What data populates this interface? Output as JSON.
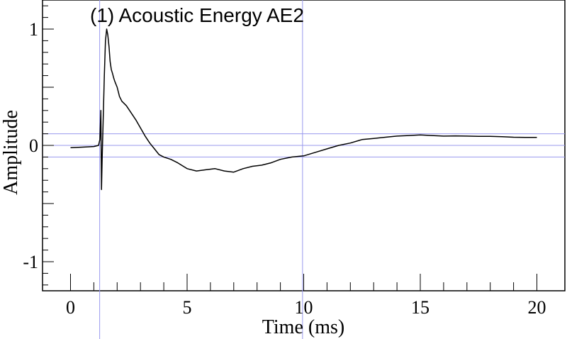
{
  "chart_data": {
    "type": "line",
    "title": "(1) Acoustic Energy AE2",
    "xlabel": "Time (ms)",
    "ylabel": "Amplitude",
    "xlim": [
      -1.2,
      21.2
    ],
    "ylim": [
      -1.25,
      1.25
    ],
    "x_ticks": [
      0,
      5,
      10,
      15,
      20
    ],
    "x_tick_labels": [
      "0",
      "5",
      "10",
      "15",
      "20"
    ],
    "y_ticks": [
      -1,
      0,
      1
    ],
    "y_tick_labels": [
      "-1",
      "0",
      "1"
    ],
    "reference_lines": {
      "horizontal": [
        0.1,
        0,
        -0.1
      ],
      "vertical": [
        1.25,
        9.95
      ]
    },
    "grid": false,
    "colors": {
      "signal": "#000000",
      "reference": "#9999ee",
      "axis": "#000000"
    },
    "series": [
      {
        "x": [
          0.0,
          0.5,
          1.0,
          1.2,
          1.26,
          1.3,
          1.33,
          1.36,
          1.4,
          1.45,
          1.5,
          1.55,
          1.6,
          1.65,
          1.7,
          1.75,
          1.8,
          1.85,
          1.9,
          2.0,
          2.1,
          2.2,
          2.4,
          2.6,
          2.8,
          3.0,
          3.2,
          3.4,
          3.6,
          3.8,
          4.0,
          4.3,
          4.6,
          5.0,
          5.4,
          5.8,
          6.2,
          6.6,
          7.0,
          7.4,
          7.8,
          8.2,
          8.6,
          9.0,
          9.5,
          10.0,
          10.5,
          11.0,
          11.5,
          12.0,
          12.5,
          13.0,
          13.5,
          14.0,
          14.5,
          15.0,
          15.5,
          16.0,
          16.5,
          17.0,
          17.5,
          18.0,
          18.5,
          19.0,
          19.5,
          20.0
        ],
        "y": [
          -0.02,
          -0.015,
          -0.01,
          0.0,
          0.05,
          0.3,
          -0.38,
          -0.1,
          0.2,
          0.6,
          0.9,
          1.0,
          0.95,
          0.85,
          0.72,
          0.65,
          0.62,
          0.58,
          0.55,
          0.5,
          0.42,
          0.38,
          0.34,
          0.28,
          0.22,
          0.15,
          0.08,
          0.02,
          -0.03,
          -0.08,
          -0.1,
          -0.12,
          -0.15,
          -0.2,
          -0.22,
          -0.21,
          -0.2,
          -0.22,
          -0.23,
          -0.2,
          -0.18,
          -0.17,
          -0.15,
          -0.12,
          -0.1,
          -0.09,
          -0.06,
          -0.03,
          0.0,
          0.02,
          0.05,
          0.06,
          0.07,
          0.08,
          0.085,
          0.09,
          0.085,
          0.08,
          0.082,
          0.08,
          0.078,
          0.078,
          0.075,
          0.07,
          0.068,
          0.068
        ]
      }
    ]
  }
}
